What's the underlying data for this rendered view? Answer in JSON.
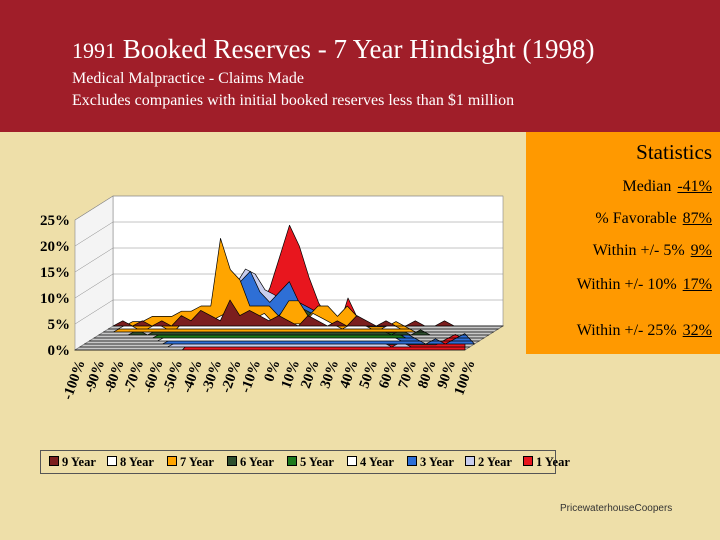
{
  "header": {
    "title_year": "1991",
    "title_rest": "Booked Reserves - 7 Year Hindsight (1998)",
    "subtitle1": "Medical Malpractice - Claims Made",
    "subtitle2": "Excludes companies with initial booked reserves less than $1 million"
  },
  "stats": {
    "title": "Statistics",
    "rows": [
      {
        "label": "Median",
        "value": "-41%"
      },
      {
        "label": "% Favorable",
        "value": "87%"
      },
      {
        "label": "Within +/- 5%",
        "value": "9%"
      },
      {
        "label": "Within +/- 10%",
        "value": "17%"
      },
      {
        "label": "Within +/- 25%",
        "value": "32%"
      }
    ]
  },
  "footer": "PricewaterhouseCoopers",
  "colors": {
    "background": "#EEDFA9",
    "header": "#A01E29",
    "stats_box": "#FF9900"
  },
  "chart_data": {
    "type": "area",
    "style": "3d-stacked-ribbons",
    "y_ticks": [
      "0%",
      "5%",
      "10%",
      "15%",
      "20%",
      "25%"
    ],
    "x_ticks": [
      "-100%",
      "-90%",
      "-80%",
      "-70%",
      "-60%",
      "-50%",
      "-40%",
      "-30%",
      "-20%",
      "-10%",
      "0%",
      "10%",
      "20%",
      "30%",
      "40%",
      "50%",
      "60%",
      "70%",
      "80%",
      "90%",
      "100%"
    ],
    "ylim": [
      0,
      25
    ],
    "x": [
      -100,
      -95,
      -90,
      -85,
      -80,
      -75,
      -70,
      -65,
      -60,
      -55,
      -50,
      -45,
      -40,
      -35,
      -30,
      -25,
      -20,
      -15,
      -10,
      -5,
      0,
      5,
      10,
      15,
      20,
      25,
      30,
      35,
      40,
      45,
      50,
      55,
      60,
      65,
      70,
      75,
      80,
      85,
      90,
      95,
      100
    ],
    "series": [
      {
        "name": "9 Year",
        "color": "#7B1E1E",
        "values": [
          0,
          1,
          0,
          1,
          0,
          1,
          0,
          2,
          1,
          3,
          2,
          1,
          5,
          2,
          3,
          2,
          1,
          2,
          1,
          0,
          2,
          1,
          0,
          1,
          0,
          2,
          1,
          0,
          1,
          0,
          0,
          1,
          0,
          0,
          1,
          0,
          0,
          0,
          0,
          0,
          0
        ]
      },
      {
        "name": "8 Year",
        "color": "#FFFFFF",
        "values": [
          0,
          0,
          1,
          0,
          0,
          1,
          0,
          0,
          2,
          1,
          1,
          2,
          3,
          2,
          1,
          2,
          3,
          1,
          2,
          1,
          1,
          3,
          2,
          1,
          0,
          1,
          1,
          0,
          0,
          1,
          0,
          0,
          0,
          0,
          0,
          0,
          0,
          0,
          0,
          0,
          0
        ]
      },
      {
        "name": "7 Year",
        "color": "#FFA500",
        "values": [
          0,
          0,
          1,
          2,
          2,
          3,
          3,
          3,
          4,
          4,
          5,
          5,
          18,
          12,
          10,
          5,
          5,
          5,
          3,
          6,
          6,
          3,
          5,
          5,
          3,
          5,
          3,
          1,
          1,
          1,
          2,
          1,
          0,
          0,
          0,
          0,
          0,
          0,
          0,
          0,
          0
        ]
      },
      {
        "name": "6 Year",
        "color": "#2E4E2E",
        "values": [
          0,
          0,
          0,
          0,
          1,
          0,
          1,
          2,
          2,
          1,
          2,
          2,
          7,
          4,
          5,
          4,
          3,
          2,
          3,
          4,
          3,
          5,
          4,
          4,
          2,
          3,
          2,
          2,
          1,
          1,
          0,
          1,
          0,
          1,
          0,
          0,
          0,
          0,
          0,
          0,
          0
        ]
      },
      {
        "name": "5 Year",
        "color": "#1E7A1E",
        "values": [
          0,
          0,
          0,
          0,
          0,
          0,
          0,
          1,
          1,
          1,
          1,
          2,
          6,
          4,
          3,
          3,
          3,
          4,
          3,
          3,
          3,
          4,
          3,
          2,
          2,
          3,
          2,
          2,
          2,
          2,
          1,
          1,
          0,
          0,
          0,
          0,
          0,
          0,
          0,
          0,
          0
        ]
      },
      {
        "name": "4 Year",
        "color": "#FFFFFF",
        "values": [
          0,
          0,
          0,
          0,
          0,
          0,
          0,
          0,
          1,
          1,
          1,
          2,
          5,
          4,
          4,
          3,
          5,
          5,
          6,
          4,
          6,
          4,
          4,
          3,
          3,
          2,
          2,
          1,
          1,
          1,
          1,
          1,
          0,
          0,
          0,
          0,
          0,
          0,
          0,
          0,
          0
        ]
      },
      {
        "name": "3 Year",
        "color": "#2E6FD6",
        "values": [
          0,
          0,
          0,
          0,
          0,
          0,
          0,
          0,
          0,
          1,
          1,
          2,
          3,
          4,
          5,
          8,
          12,
          14,
          10,
          8,
          10,
          12,
          8,
          7,
          6,
          5,
          3,
          2,
          1,
          2,
          1,
          1,
          1,
          2,
          1,
          0,
          1,
          0,
          1,
          2,
          0
        ]
      },
      {
        "name": "2 Year",
        "color": "#C8CDEE",
        "values": [
          0,
          0,
          0,
          0,
          0,
          0,
          0,
          0,
          0,
          0,
          1,
          2,
          3,
          4,
          6,
          9,
          12,
          15,
          14,
          11,
          10,
          8,
          9,
          7,
          5,
          3,
          2,
          2,
          1,
          1,
          1,
          1,
          0,
          1,
          0,
          0,
          0,
          0,
          0,
          0,
          0
        ]
      },
      {
        "name": "1 Year",
        "color": "#E8161E",
        "values": [
          0,
          0,
          0,
          0,
          0,
          0,
          0,
          0,
          0,
          0,
          0,
          0,
          2,
          8,
          5,
          4,
          3,
          6,
          4,
          8,
          12,
          18,
          24,
          20,
          14,
          9,
          6,
          4,
          10,
          6,
          3,
          2,
          1,
          1,
          1,
          1,
          1,
          1,
          2,
          3,
          2
        ]
      }
    ]
  }
}
